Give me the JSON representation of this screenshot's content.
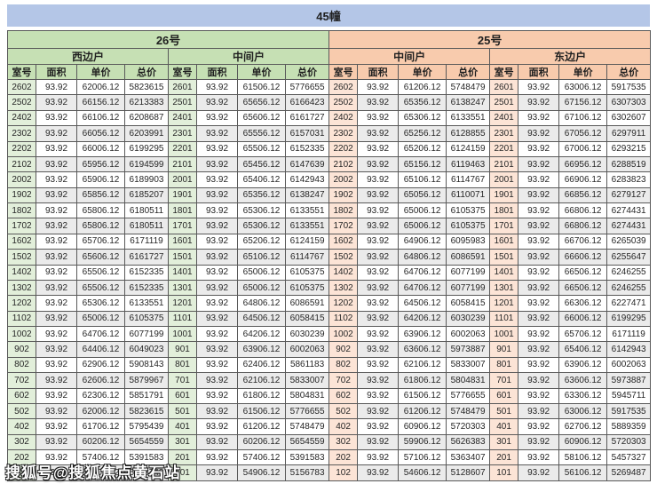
{
  "page": {
    "title": "45幢",
    "watermark": "搜狐号@搜狐焦点黄石站"
  },
  "colors": {
    "title_bg": "#b4c6e7",
    "green_header_bg": "#c6e0b4",
    "green_room_bg": "#e2efda",
    "orange_header_bg": "#f8cbad",
    "orange_room_bg": "#fce4d6",
    "alt_row_bg": "#ebebeb",
    "border": "#595959"
  },
  "table": {
    "buildings": [
      "26号",
      "25号"
    ],
    "unit_groups": [
      "西边户",
      "中间户",
      "中间户",
      "东边户"
    ],
    "column_headers": [
      "室号",
      "面积",
      "单价",
      "总价"
    ],
    "sections": [
      {
        "building": "26号",
        "unit": "西边户",
        "theme": "green",
        "rows": [
          [
            "2602",
            "93.92",
            "62006.12",
            "5823615"
          ],
          [
            "2502",
            "93.92",
            "66156.12",
            "6213383"
          ],
          [
            "2402",
            "93.92",
            "66106.12",
            "6208687"
          ],
          [
            "2302",
            "93.92",
            "66056.12",
            "6203991"
          ],
          [
            "2202",
            "93.92",
            "66006.12",
            "6199295"
          ],
          [
            "2102",
            "93.92",
            "65956.12",
            "6194599"
          ],
          [
            "2002",
            "93.92",
            "65906.12",
            "6189903"
          ],
          [
            "1902",
            "93.92",
            "65856.12",
            "6185207"
          ],
          [
            "1802",
            "93.92",
            "65806.12",
            "6180511"
          ],
          [
            "1702",
            "93.92",
            "65806.12",
            "6180511"
          ],
          [
            "1602",
            "93.92",
            "65706.12",
            "6171119"
          ],
          [
            "1502",
            "93.92",
            "65606.12",
            "6161727"
          ],
          [
            "1402",
            "93.92",
            "65506.12",
            "6152335"
          ],
          [
            "1302",
            "93.92",
            "65506.12",
            "6152335"
          ],
          [
            "1202",
            "93.92",
            "65306.12",
            "6133551"
          ],
          [
            "1102",
            "93.92",
            "65006.12",
            "6105375"
          ],
          [
            "1002",
            "93.92",
            "64706.12",
            "6077199"
          ],
          [
            "902",
            "93.92",
            "64406.12",
            "6049023"
          ],
          [
            "802",
            "93.92",
            "62906.12",
            "5908143"
          ],
          [
            "702",
            "93.92",
            "62606.12",
            "5879967"
          ],
          [
            "602",
            "93.92",
            "62306.12",
            "5851791"
          ],
          [
            "502",
            "93.92",
            "62006.12",
            "5823615"
          ],
          [
            "402",
            "93.92",
            "61706.12",
            "5795439"
          ],
          [
            "302",
            "93.92",
            "60206.12",
            "5654559"
          ],
          [
            "202",
            "93.92",
            "57406.12",
            "5391583"
          ],
          [
            "102",
            "93.92",
            "55406.12",
            "5203743"
          ]
        ]
      },
      {
        "building": "26号",
        "unit": "中间户",
        "theme": "green",
        "rows": [
          [
            "2601",
            "93.92",
            "61506.12",
            "5776655"
          ],
          [
            "2501",
            "93.92",
            "65656.12",
            "6166423"
          ],
          [
            "2401",
            "93.92",
            "65606.12",
            "6161727"
          ],
          [
            "2301",
            "93.92",
            "65556.12",
            "6157031"
          ],
          [
            "2201",
            "93.92",
            "65506.12",
            "6152335"
          ],
          [
            "2101",
            "93.92",
            "65456.12",
            "6147639"
          ],
          [
            "2001",
            "93.92",
            "65406.12",
            "6142943"
          ],
          [
            "1901",
            "93.92",
            "65356.12",
            "6138247"
          ],
          [
            "1801",
            "93.92",
            "65306.12",
            "6133551"
          ],
          [
            "1701",
            "93.92",
            "65306.12",
            "6133551"
          ],
          [
            "1601",
            "93.92",
            "65206.12",
            "6124159"
          ],
          [
            "1501",
            "93.92",
            "65106.12",
            "6114767"
          ],
          [
            "1401",
            "93.92",
            "65006.12",
            "6105375"
          ],
          [
            "1301",
            "93.92",
            "65006.12",
            "6105375"
          ],
          [
            "1201",
            "93.92",
            "64806.12",
            "6086591"
          ],
          [
            "1101",
            "93.92",
            "64506.12",
            "6058415"
          ],
          [
            "1001",
            "93.92",
            "64206.12",
            "6030239"
          ],
          [
            "901",
            "93.92",
            "63906.12",
            "6002063"
          ],
          [
            "801",
            "93.92",
            "62406.12",
            "5861183"
          ],
          [
            "701",
            "93.92",
            "62106.12",
            "5833007"
          ],
          [
            "601",
            "93.92",
            "61806.12",
            "5804831"
          ],
          [
            "501",
            "93.92",
            "61506.12",
            "5776655"
          ],
          [
            "401",
            "93.92",
            "61206.12",
            "5748479"
          ],
          [
            "301",
            "93.92",
            "60206.12",
            "5654559"
          ],
          [
            "201",
            "93.92",
            "57406.12",
            "5391583"
          ],
          [
            "101",
            "93.92",
            "54906.12",
            "5156783"
          ]
        ]
      },
      {
        "building": "25号",
        "unit": "中间户",
        "theme": "orange",
        "rows": [
          [
            "2602",
            "93.92",
            "61206.12",
            "5748479"
          ],
          [
            "2502",
            "93.92",
            "65356.12",
            "6138247"
          ],
          [
            "2402",
            "93.92",
            "65306.12",
            "6133551"
          ],
          [
            "2302",
            "93.92",
            "65256.12",
            "6128855"
          ],
          [
            "2202",
            "93.92",
            "65206.12",
            "6124159"
          ],
          [
            "2102",
            "93.92",
            "65156.12",
            "6119463"
          ],
          [
            "2002",
            "93.92",
            "65106.12",
            "6114767"
          ],
          [
            "1902",
            "93.92",
            "65056.12",
            "6110071"
          ],
          [
            "1802",
            "93.92",
            "65006.12",
            "6105375"
          ],
          [
            "1702",
            "93.92",
            "65006.12",
            "6105375"
          ],
          [
            "1602",
            "93.92",
            "64906.12",
            "6095983"
          ],
          [
            "1502",
            "93.92",
            "64806.12",
            "6086591"
          ],
          [
            "1402",
            "93.92",
            "64706.12",
            "6077199"
          ],
          [
            "1302",
            "93.92",
            "64706.12",
            "6077199"
          ],
          [
            "1202",
            "93.92",
            "64506.12",
            "6058415"
          ],
          [
            "1102",
            "93.92",
            "64206.12",
            "6030239"
          ],
          [
            "1002",
            "93.92",
            "63906.12",
            "6002063"
          ],
          [
            "902",
            "93.92",
            "63606.12",
            "5973887"
          ],
          [
            "802",
            "93.92",
            "62106.12",
            "5833007"
          ],
          [
            "702",
            "93.92",
            "61806.12",
            "5804831"
          ],
          [
            "602",
            "93.92",
            "61506.12",
            "5776655"
          ],
          [
            "502",
            "93.92",
            "61206.12",
            "5748479"
          ],
          [
            "402",
            "93.92",
            "60906.12",
            "5720303"
          ],
          [
            "302",
            "93.92",
            "59906.12",
            "5626383"
          ],
          [
            "202",
            "93.92",
            "57106.12",
            "5363407"
          ],
          [
            "102",
            "93.92",
            "54606.12",
            "5128607"
          ]
        ]
      },
      {
        "building": "25号",
        "unit": "东边户",
        "theme": "orange",
        "rows": [
          [
            "2601",
            "93.92",
            "63006.12",
            "5917535"
          ],
          [
            "2501",
            "93.92",
            "67156.12",
            "6307303"
          ],
          [
            "2401",
            "93.92",
            "67106.12",
            "6302607"
          ],
          [
            "2301",
            "93.92",
            "67056.12",
            "6297911"
          ],
          [
            "2201",
            "93.92",
            "67006.12",
            "6293215"
          ],
          [
            "2101",
            "93.92",
            "66956.12",
            "6288519"
          ],
          [
            "2001",
            "93.92",
            "66906.12",
            "6283823"
          ],
          [
            "1901",
            "93.92",
            "66856.12",
            "6279127"
          ],
          [
            "1801",
            "93.92",
            "66806.12",
            "6274431"
          ],
          [
            "1701",
            "93.92",
            "66806.12",
            "6274431"
          ],
          [
            "1601",
            "93.92",
            "66706.12",
            "6265039"
          ],
          [
            "1501",
            "93.92",
            "66606.12",
            "6255647"
          ],
          [
            "1401",
            "93.92",
            "66506.12",
            "6246255"
          ],
          [
            "1301",
            "93.92",
            "66506.12",
            "6246255"
          ],
          [
            "1201",
            "93.92",
            "66306.12",
            "6227471"
          ],
          [
            "1101",
            "93.92",
            "66006.12",
            "6199295"
          ],
          [
            "1001",
            "93.92",
            "65706.12",
            "6171119"
          ],
          [
            "901",
            "93.92",
            "65406.12",
            "6142943"
          ],
          [
            "801",
            "93.92",
            "63906.12",
            "6002063"
          ],
          [
            "701",
            "93.92",
            "63606.12",
            "5973887"
          ],
          [
            "601",
            "93.92",
            "63306.12",
            "5945711"
          ],
          [
            "501",
            "93.92",
            "63006.12",
            "5917535"
          ],
          [
            "401",
            "93.92",
            "62706.12",
            "5889359"
          ],
          [
            "301",
            "93.92",
            "60906.12",
            "5720303"
          ],
          [
            "201",
            "93.92",
            "58106.12",
            "5457327"
          ],
          [
            "101",
            "93.92",
            "56106.12",
            "5269487"
          ]
        ]
      }
    ]
  }
}
